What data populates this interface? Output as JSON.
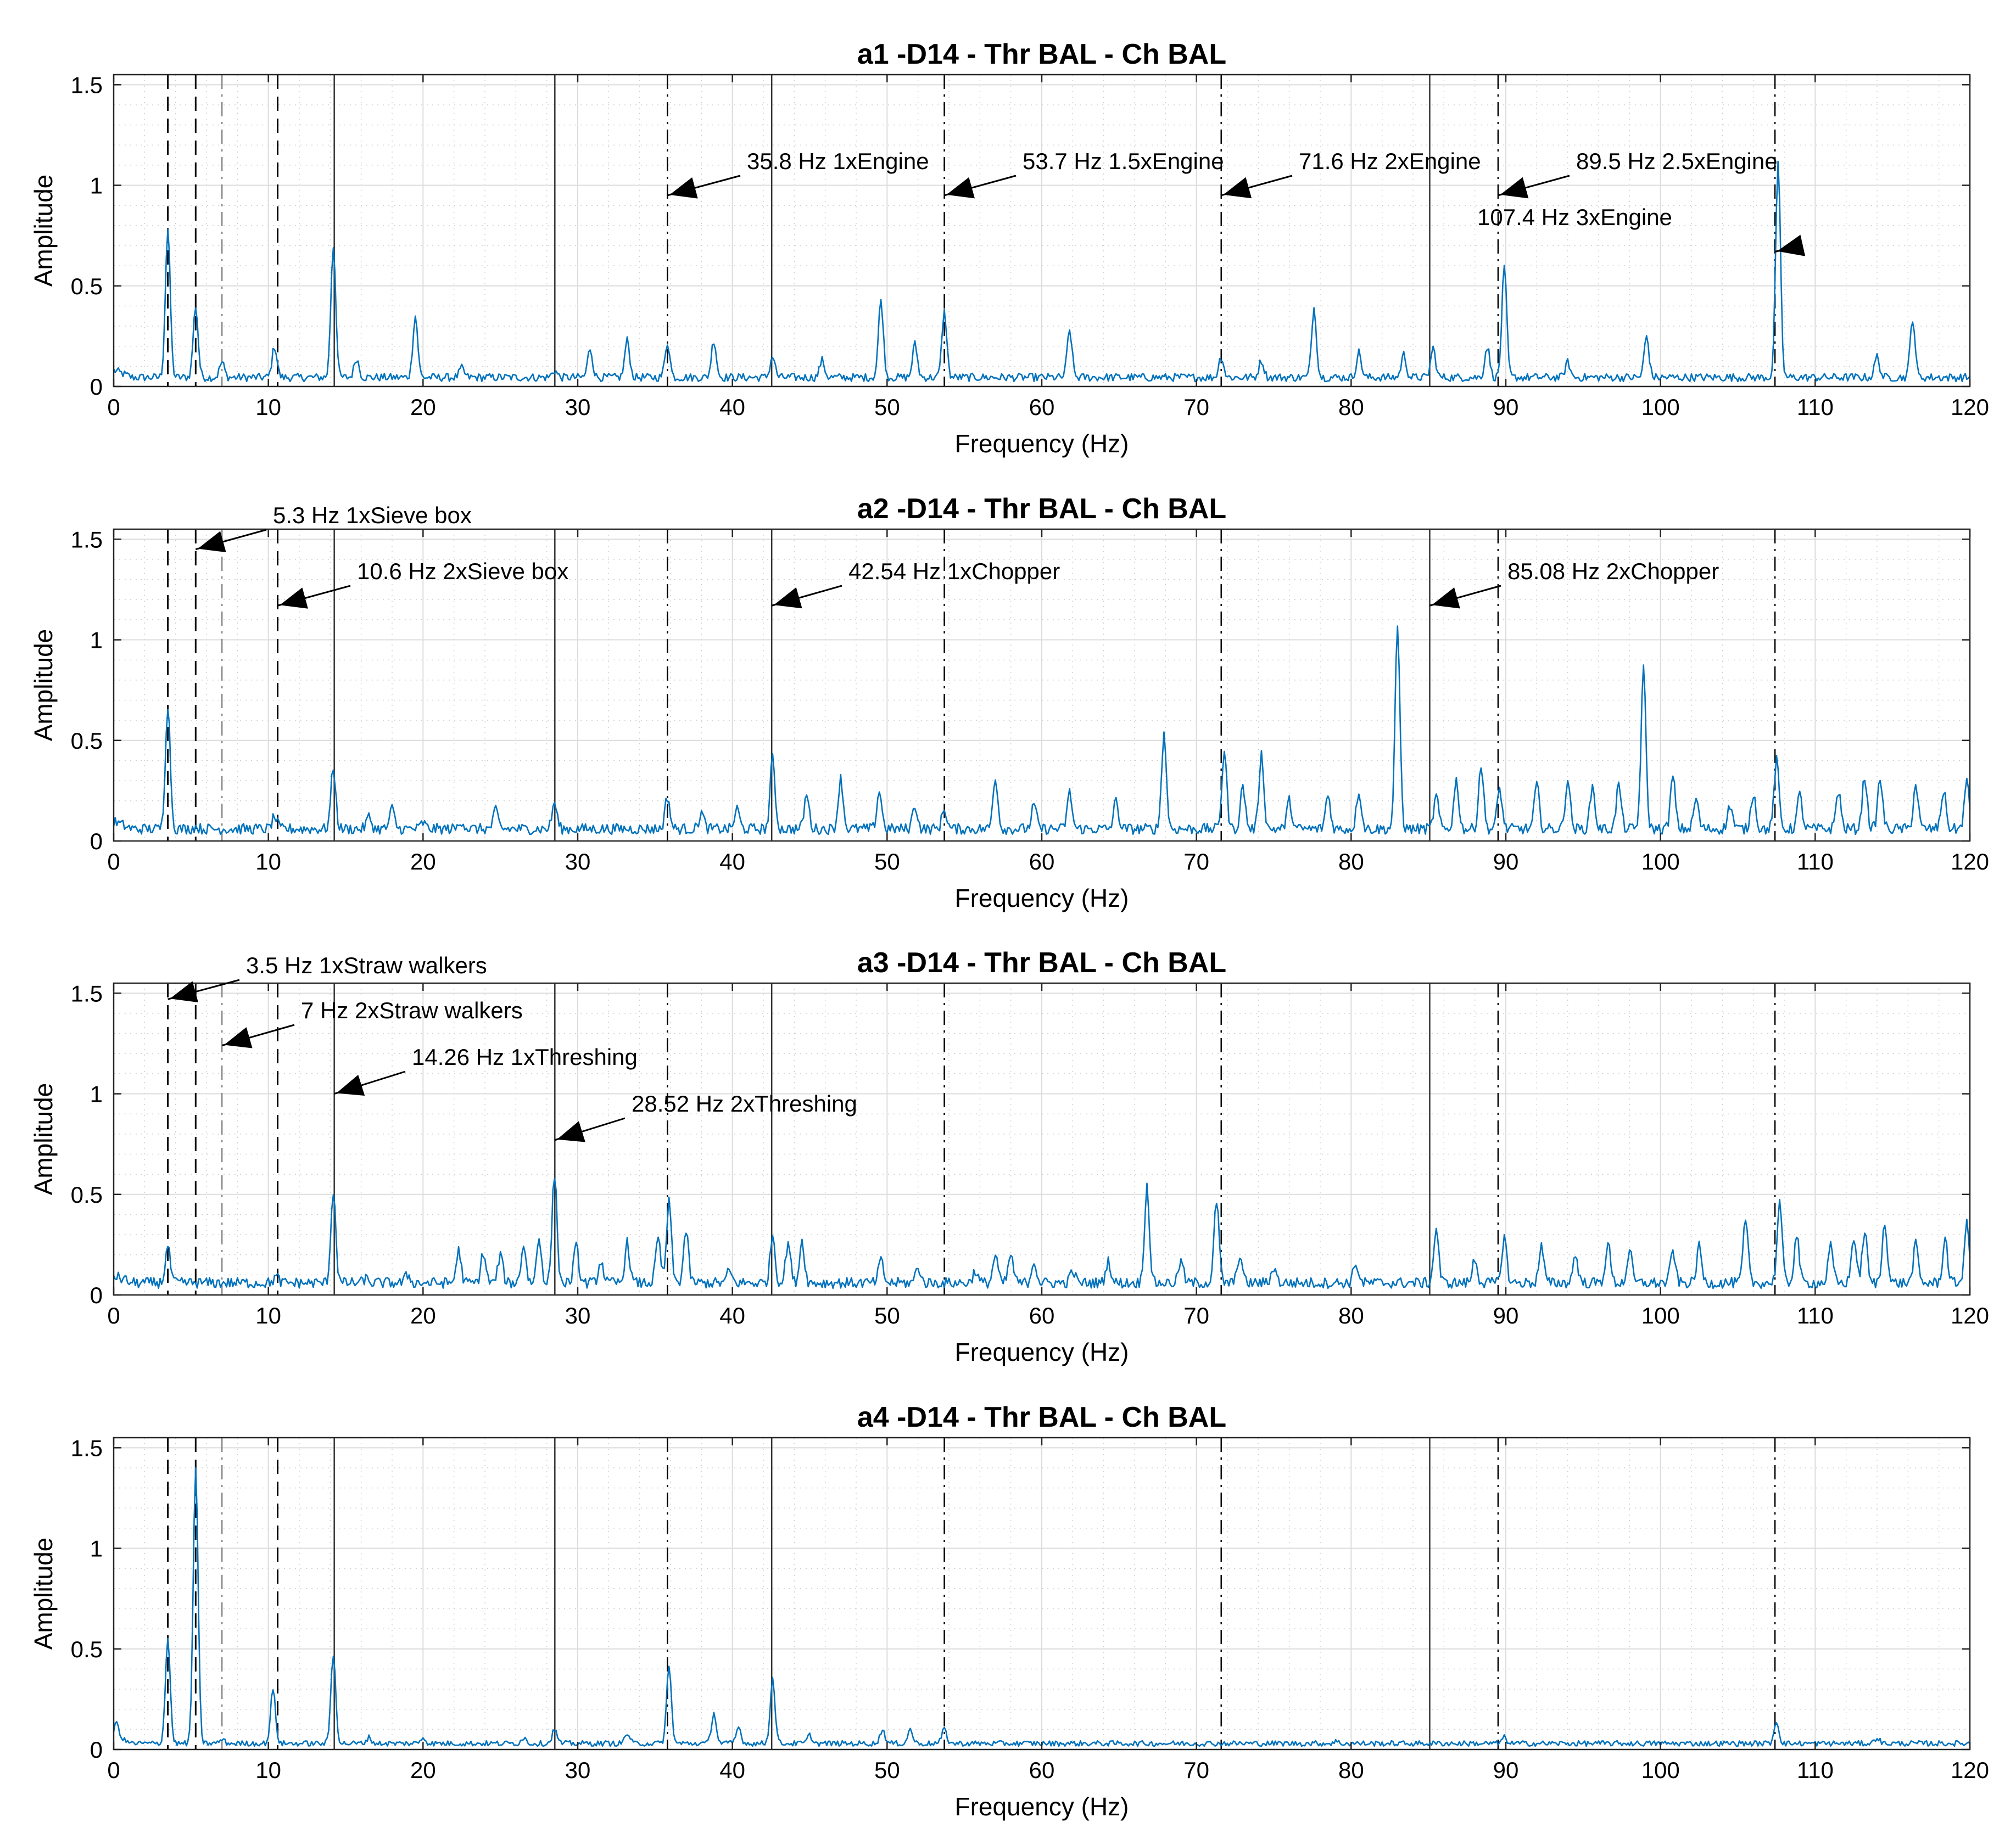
{
  "chart_data": {
    "type": "line",
    "line_color": "#0072BD",
    "xlabel": "Frequency (Hz)",
    "ylabel": "Amplitude",
    "xlim": [
      0,
      120
    ],
    "ylim": [
      0,
      1.55
    ],
    "xticks": [
      "0",
      "10",
      "20",
      "30",
      "40",
      "50",
      "60",
      "70",
      "80",
      "90",
      "100",
      "110",
      "120"
    ],
    "yticks": [
      "0",
      "0.5",
      "1",
      "1.5"
    ],
    "grid": true,
    "minor_grid": true,
    "reference_lines": [
      {
        "x": 3.5,
        "style": "dash"
      },
      {
        "x": 5.3,
        "style": "dash"
      },
      {
        "x": 7.0,
        "style": "dashdot-light"
      },
      {
        "x": 10.6,
        "style": "dash"
      },
      {
        "x": 14.26,
        "style": "solid"
      },
      {
        "x": 28.52,
        "style": "solid"
      },
      {
        "x": 35.8,
        "style": "dashdot"
      },
      {
        "x": 42.54,
        "style": "solid"
      },
      {
        "x": 53.7,
        "style": "dashdot"
      },
      {
        "x": 71.6,
        "style": "dashdot"
      },
      {
        "x": 85.08,
        "style": "solid"
      },
      {
        "x": 89.5,
        "style": "dashdot"
      },
      {
        "x": 107.4,
        "style": "dashdot"
      }
    ],
    "panels": [
      {
        "title": "a1 -D14 - Thr BAL - Ch BAL",
        "baseline": 0.045,
        "peaks": [
          [
            3.5,
            0.78
          ],
          [
            5.3,
            0.4
          ],
          [
            7,
            0.12
          ],
          [
            10.4,
            0.2
          ],
          [
            14.2,
            0.7
          ],
          [
            15.7,
            0.14
          ],
          [
            19.5,
            0.35
          ],
          [
            22.5,
            0.09
          ],
          [
            28.5,
            0.08
          ],
          [
            30.8,
            0.19
          ],
          [
            33.2,
            0.23
          ],
          [
            35.8,
            0.22
          ],
          [
            38.8,
            0.23
          ],
          [
            42.6,
            0.15
          ],
          [
            45.8,
            0.13
          ],
          [
            49.6,
            0.43
          ],
          [
            51.8,
            0.21
          ],
          [
            53.7,
            0.37
          ],
          [
            61.8,
            0.28
          ],
          [
            71.6,
            0.15
          ],
          [
            74.2,
            0.13
          ],
          [
            77.6,
            0.39
          ],
          [
            80.5,
            0.17
          ],
          [
            83.4,
            0.16
          ],
          [
            85.3,
            0.19
          ],
          [
            88.8,
            0.2
          ],
          [
            89.9,
            0.59
          ],
          [
            94,
            0.12
          ],
          [
            99.1,
            0.25
          ],
          [
            107.6,
            1.1
          ],
          [
            114,
            0.15
          ],
          [
            116.3,
            0.34
          ]
        ],
        "annotations": [
          {
            "text": "35.8 Hz 1xEngine",
            "x": 35.8,
            "y": 0.95
          },
          {
            "text": "53.7 Hz 1.5xEngine",
            "x": 53.7,
            "y": 0.95
          },
          {
            "text": "71.6 Hz 2xEngine",
            "x": 71.6,
            "y": 0.95
          },
          {
            "text": "89.5 Hz 2.5xEngine",
            "x": 89.5,
            "y": 0.95
          },
          {
            "text": "107.4 Hz 3xEngine",
            "x": 107.4,
            "y": 0.67
          }
        ]
      },
      {
        "title": "a2 -D14 - Thr BAL - Ch BAL",
        "baseline": 0.06,
        "peaks": [
          [
            3.5,
            0.68
          ],
          [
            5.3,
            0.07
          ],
          [
            10.4,
            0.12
          ],
          [
            14.2,
            0.36
          ],
          [
            16.5,
            0.12
          ],
          [
            18,
            0.16
          ],
          [
            20,
            0.09
          ],
          [
            22.5,
            0.1
          ],
          [
            24.7,
            0.15
          ],
          [
            28.5,
            0.19
          ],
          [
            35.8,
            0.22
          ],
          [
            38,
            0.14
          ],
          [
            40.3,
            0.16
          ],
          [
            42.6,
            0.41
          ],
          [
            44.8,
            0.23
          ],
          [
            47,
            0.31
          ],
          [
            49.5,
            0.25
          ],
          [
            51.8,
            0.18
          ],
          [
            53.7,
            0.16
          ],
          [
            57,
            0.32
          ],
          [
            59.5,
            0.18
          ],
          [
            61.8,
            0.24
          ],
          [
            64.8,
            0.2
          ],
          [
            67.9,
            0.53
          ],
          [
            71.8,
            0.45
          ],
          [
            73,
            0.27
          ],
          [
            74.2,
            0.43
          ],
          [
            76,
            0.2
          ],
          [
            78.5,
            0.23
          ],
          [
            80.5,
            0.25
          ],
          [
            83,
            1.05
          ],
          [
            85.5,
            0.22
          ],
          [
            86.8,
            0.3
          ],
          [
            88.4,
            0.38
          ],
          [
            89.6,
            0.26
          ],
          [
            92,
            0.28
          ],
          [
            94,
            0.31
          ],
          [
            95.6,
            0.27
          ],
          [
            97.3,
            0.28
          ],
          [
            98.9,
            0.85
          ],
          [
            100.8,
            0.32
          ],
          [
            102.3,
            0.21
          ],
          [
            104.5,
            0.18
          ],
          [
            106,
            0.24
          ],
          [
            107.5,
            0.4
          ],
          [
            109,
            0.23
          ],
          [
            111.5,
            0.25
          ],
          [
            113.2,
            0.32
          ],
          [
            114.2,
            0.31
          ],
          [
            116.5,
            0.28
          ],
          [
            118.3,
            0.25
          ],
          [
            119.8,
            0.29
          ]
        ],
        "annotations": [
          {
            "text": "5.3 Hz 1xSieve box",
            "x": 5.3,
            "y": 1.45
          },
          {
            "text": "10.6 Hz 2xSieve box",
            "x": 10.6,
            "y": 1.17
          },
          {
            "text": "42.54 Hz 1xChopper",
            "x": 42.54,
            "y": 1.17
          },
          {
            "text": "85.08 Hz 2xChopper",
            "x": 85.08,
            "y": 1.17
          }
        ]
      },
      {
        "title": "a3 -D14 - Thr BAL - Ch BAL",
        "baseline": 0.06,
        "peaks": [
          [
            3.5,
            0.24
          ],
          [
            7,
            0.05
          ],
          [
            10.5,
            0.09
          ],
          [
            14.2,
            0.52
          ],
          [
            16.3,
            0.08
          ],
          [
            19,
            0.1
          ],
          [
            22.3,
            0.22
          ],
          [
            23.9,
            0.21
          ],
          [
            25,
            0.2
          ],
          [
            26.5,
            0.25
          ],
          [
            27.5,
            0.28
          ],
          [
            28.5,
            0.6
          ],
          [
            29.9,
            0.24
          ],
          [
            31.5,
            0.17
          ],
          [
            33.2,
            0.26
          ],
          [
            35.2,
            0.28
          ],
          [
            35.9,
            0.46
          ],
          [
            37,
            0.32
          ],
          [
            39.8,
            0.12
          ],
          [
            42.6,
            0.3
          ],
          [
            43.6,
            0.26
          ],
          [
            44.5,
            0.27
          ],
          [
            49.6,
            0.17
          ],
          [
            52,
            0.14
          ],
          [
            55.7,
            0.12
          ],
          [
            57,
            0.2
          ],
          [
            58,
            0.2
          ],
          [
            59.5,
            0.17
          ],
          [
            62,
            0.12
          ],
          [
            64.3,
            0.17
          ],
          [
            66.8,
            0.54
          ],
          [
            69,
            0.17
          ],
          [
            71.3,
            0.47
          ],
          [
            72.8,
            0.2
          ],
          [
            75,
            0.14
          ],
          [
            80.3,
            0.16
          ],
          [
            85.5,
            0.33
          ],
          [
            88,
            0.18
          ],
          [
            89.9,
            0.29
          ],
          [
            92.3,
            0.24
          ],
          [
            94.5,
            0.2
          ],
          [
            96.6,
            0.26
          ],
          [
            98,
            0.22
          ],
          [
            100.8,
            0.22
          ],
          [
            102.5,
            0.24
          ],
          [
            105.5,
            0.37
          ],
          [
            107.7,
            0.46
          ],
          [
            108.8,
            0.3
          ],
          [
            111,
            0.24
          ],
          [
            112.5,
            0.29
          ],
          [
            113.2,
            0.32
          ],
          [
            114.5,
            0.37
          ],
          [
            116.5,
            0.25
          ],
          [
            118.4,
            0.28
          ],
          [
            119.8,
            0.35
          ]
        ],
        "annotations": [
          {
            "text": "3.5 Hz 1xStraw walkers",
            "x": 3.5,
            "y": 1.47
          },
          {
            "text": "7 Hz 2xStraw walkers",
            "x": 7.0,
            "y": 1.24
          },
          {
            "text": "14.26 Hz 1xThreshing",
            "x": 14.26,
            "y": 1.0
          },
          {
            "text": "28.52 Hz 2xThreshing",
            "x": 28.52,
            "y": 0.77
          }
        ]
      },
      {
        "title": "a4 -D14 - Thr BAL - Ch BAL",
        "baseline": 0.03,
        "peaks": [
          [
            0.2,
            0.1
          ],
          [
            3.5,
            0.55
          ],
          [
            5.3,
            1.4
          ],
          [
            7,
            0.05
          ],
          [
            10.3,
            0.3
          ],
          [
            14.2,
            0.47
          ],
          [
            16.5,
            0.06
          ],
          [
            20,
            0.06
          ],
          [
            26.5,
            0.06
          ],
          [
            28.5,
            0.1
          ],
          [
            33.2,
            0.08
          ],
          [
            35.9,
            0.41
          ],
          [
            38.8,
            0.18
          ],
          [
            40.4,
            0.11
          ],
          [
            42.6,
            0.35
          ],
          [
            45,
            0.07
          ],
          [
            49.7,
            0.1
          ],
          [
            51.5,
            0.1
          ],
          [
            53.7,
            0.1
          ],
          [
            79,
            0.04
          ],
          [
            89.9,
            0.06
          ],
          [
            107.5,
            0.14
          ],
          [
            114,
            0.06
          ]
        ],
        "annotations": []
      }
    ]
  }
}
